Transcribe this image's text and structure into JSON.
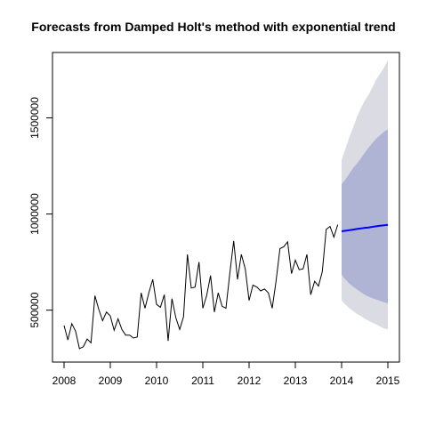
{
  "chart_data": {
    "type": "line",
    "title": "Forecasts from Damped Holt's method with exponential trend",
    "xlabel": "",
    "ylabel": "",
    "xlim": [
      2007.75,
      2015.25
    ],
    "ylim": [
      230000,
      1840000
    ],
    "x_ticks": [
      2008,
      2009,
      2010,
      2011,
      2012,
      2013,
      2014,
      2015
    ],
    "x_tick_labels": [
      "2008",
      "2009",
      "2010",
      "2011",
      "2012",
      "2013",
      "2014",
      "2015"
    ],
    "y_ticks": [
      500000,
      1000000,
      1500000
    ],
    "y_tick_labels": [
      "500000",
      "1000000",
      "1500000"
    ],
    "grid": false,
    "colors": {
      "observed": "#000000",
      "forecast": "#0000ff",
      "band95": "#dbdbe3",
      "band80": "#b0b4d4"
    },
    "observed": {
      "start": 2008,
      "frequency": 12,
      "values": [
        420000,
        345000,
        430000,
        390000,
        300000,
        310000,
        350000,
        330000,
        575000,
        505000,
        445000,
        490000,
        470000,
        395000,
        455000,
        400000,
        370000,
        370000,
        355000,
        360000,
        590000,
        510000,
        590000,
        660000,
        530000,
        515000,
        580000,
        340000,
        560000,
        460000,
        400000,
        465000,
        790000,
        615000,
        620000,
        750000,
        510000,
        575000,
        680000,
        490000,
        590000,
        520000,
        510000,
        690000,
        860000,
        660000,
        790000,
        715000,
        550000,
        630000,
        620000,
        600000,
        610000,
        590000,
        510000,
        650000,
        820000,
        830000,
        855000,
        690000,
        760000,
        710000,
        715000,
        790000,
        580000,
        650000,
        625000,
        700000,
        920000,
        935000,
        880000,
        945000
      ]
    },
    "forecast": {
      "start": 2014,
      "frequency": 12,
      "mean": [
        910000,
        913000,
        916000,
        919000,
        922000,
        925000,
        928000,
        930000,
        933000,
        936000,
        939000,
        941000,
        944000
      ],
      "lo80": [
        685000,
        660000,
        638000,
        622000,
        607000,
        593000,
        580000,
        570000,
        562000,
        555000,
        548000,
        541000,
        535000
      ],
      "hi80": [
        1155000,
        1180000,
        1210000,
        1240000,
        1262000,
        1290000,
        1318000,
        1345000,
        1370000,
        1392000,
        1410000,
        1428000,
        1440000
      ],
      "lo95": [
        550000,
        530000,
        510000,
        495000,
        480000,
        470000,
        455000,
        445000,
        435000,
        425000,
        415000,
        405000,
        400000
      ],
      "hi95": [
        1280000,
        1340000,
        1400000,
        1450000,
        1505000,
        1550000,
        1590000,
        1620000,
        1660000,
        1700000,
        1730000,
        1760000,
        1800000
      ]
    }
  }
}
